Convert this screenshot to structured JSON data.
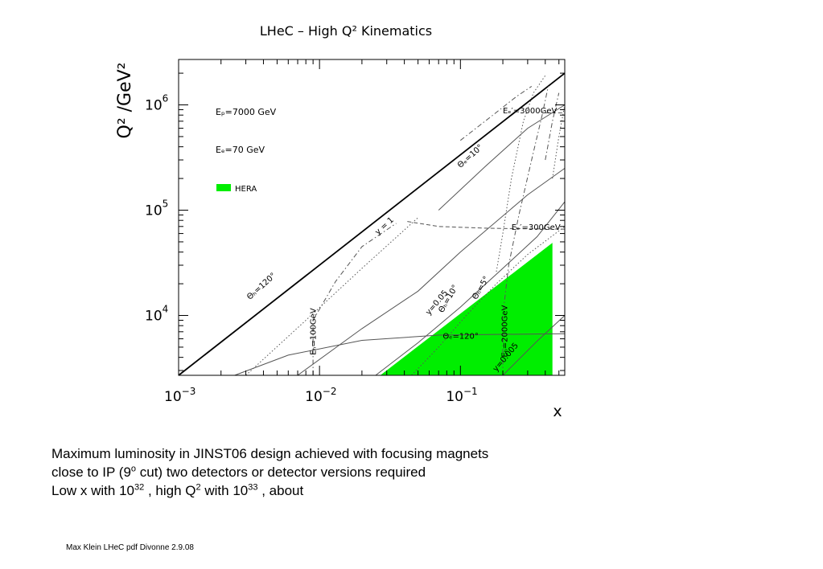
{
  "chart_data": {
    "type": "line",
    "title": "LHeC – High  Q² Kinematics",
    "xlabel": "x",
    "ylabel": "Q² /GeV²",
    "xscale": "log",
    "yscale": "log",
    "xlim": [
      0.001,
      0.55
    ],
    "ylim": [
      2700,
      2700000
    ],
    "grid": false,
    "x_ticks": [
      {
        "value": 0.001,
        "base": "10",
        "exp": "−3"
      },
      {
        "value": 0.01,
        "base": "10",
        "exp": "−2"
      },
      {
        "value": 0.1,
        "base": "10",
        "exp": "−1"
      }
    ],
    "y_ticks": [
      {
        "value": 10000,
        "base": "10",
        "exp": "4"
      },
      {
        "value": 100000,
        "base": "10",
        "exp": "5"
      },
      {
        "value": 1000000,
        "base": "10",
        "exp": "6"
      }
    ],
    "legend": {
      "placement": "top-left",
      "ep": "Eₚ=7000 GeV",
      "ee": "Eₑ=70 GeV",
      "hera": "HERA",
      "hera_color": "#00ee00"
    },
    "hera_region": [
      [
        0.027,
        2700
      ],
      [
        0.45,
        49000
      ],
      [
        0.45,
        2700
      ]
    ],
    "series": [
      {
        "style": "solid-thick",
        "points": [
          [
            0.001,
            2700
          ],
          [
            0.55,
            2000000
          ]
        ]
      },
      {
        "style": "solid-thin",
        "points": [
          [
            0.0025,
            2700
          ],
          [
            0.006,
            4200
          ],
          [
            0.02,
            5800
          ],
          [
            0.07,
            6500
          ],
          [
            0.3,
            6650
          ],
          [
            0.55,
            6700
          ]
        ]
      },
      {
        "style": "solid-thin",
        "points": [
          [
            0.007,
            2700
          ],
          [
            0.02,
            7500
          ],
          [
            0.05,
            17000
          ],
          [
            0.1,
            40000
          ],
          [
            0.3,
            140000
          ],
          [
            0.55,
            250000
          ]
        ]
      },
      {
        "style": "solid-thin",
        "points": [
          [
            0.07,
            100000
          ],
          [
            0.15,
            260000
          ],
          [
            0.3,
            600000
          ],
          [
            0.55,
            1000000
          ]
        ]
      },
      {
        "style": "solid-thin",
        "points": [
          [
            0.2,
            2700
          ],
          [
            0.35,
            5700
          ],
          [
            0.55,
            10000
          ]
        ]
      },
      {
        "style": "solid-thin",
        "points": [
          [
            0.025,
            2700
          ],
          [
            0.05,
            5500
          ],
          [
            0.1,
            12000
          ],
          [
            0.2,
            28000
          ],
          [
            0.35,
            56000
          ],
          [
            0.55,
            120000
          ]
        ]
      },
      {
        "style": "dashed",
        "points": [
          [
            0.042,
            78000
          ],
          [
            0.07,
            70000
          ],
          [
            0.15,
            67500
          ],
          [
            0.3,
            66500
          ],
          [
            0.55,
            66000
          ]
        ]
      },
      {
        "style": "dashed",
        "points": [
          [
            0.4,
            840000
          ],
          [
            0.55,
            840000
          ]
        ]
      },
      {
        "style": "dashdot",
        "points": [
          [
            0.009,
            2700
          ],
          [
            0.009,
            9000
          ],
          [
            0.013,
            21000
          ],
          [
            0.02,
            45000
          ],
          [
            0.035,
            75000
          ]
        ]
      },
      {
        "style": "dashdot",
        "points": [
          [
            0.2,
            2700
          ],
          [
            0.2,
            10000
          ],
          [
            0.22,
            30000
          ],
          [
            0.26,
            90000
          ],
          [
            0.32,
            300000
          ],
          [
            0.38,
            800000
          ],
          [
            0.42,
            1500000
          ]
        ]
      },
      {
        "style": "dashdot",
        "points": [
          [
            0.1,
            460000
          ],
          [
            0.17,
            800000
          ],
          [
            0.25,
            1200000
          ],
          [
            0.32,
            1500000
          ]
        ]
      },
      {
        "style": "dashdot",
        "points": [
          [
            0.4,
            300000
          ],
          [
            0.45,
            700000
          ],
          [
            0.5,
            1300000
          ]
        ]
      },
      {
        "style": "dotted",
        "points": [
          [
            0.003,
            2700
          ],
          [
            0.008,
            9000
          ],
          [
            0.02,
            28000
          ],
          [
            0.05,
            85000
          ]
        ]
      },
      {
        "style": "dotted",
        "points": [
          [
            0.045,
            2700
          ],
          [
            0.07,
            5000
          ],
          [
            0.11,
            10000
          ],
          [
            0.18,
            20000
          ],
          [
            0.3,
            38000
          ],
          [
            0.55,
            70000
          ]
        ]
      },
      {
        "style": "dotted",
        "points": [
          [
            0.18,
            26000
          ],
          [
            0.2,
            60000
          ],
          [
            0.23,
            200000
          ],
          [
            0.28,
            700000
          ],
          [
            0.33,
            1300000
          ],
          [
            0.4,
            1900000
          ]
        ]
      },
      {
        "style": "dotted",
        "points": [
          [
            0.45,
            200000
          ],
          [
            0.5,
            500000
          ],
          [
            0.55,
            1000000
          ]
        ]
      }
    ],
    "annotations": [
      {
        "text": "Eₑ′=3000GeV",
        "x": 0.2,
        "y": 830000,
        "rotate": 0
      },
      {
        "text": "Θₑ=10°",
        "x": 0.1,
        "y": 250000,
        "rotate": -42
      },
      {
        "text": "y = 1",
        "x": 0.026,
        "y": 58000,
        "rotate": -42
      },
      {
        "text": "Eₑ′=300GeV",
        "x": 0.23,
        "y": 65000,
        "rotate": 0
      },
      {
        "text": "Θₕ=120°",
        "x": 0.0032,
        "y": 14000,
        "rotate": -42
      },
      {
        "text": "Eₕ=100GeV",
        "x": 0.0094,
        "y": 4200,
        "rotate": -90
      },
      {
        "text": "y=0.05",
        "x": 0.06,
        "y": 10000,
        "rotate": -50
      },
      {
        "text": "Θₕ=10°",
        "x": 0.075,
        "y": 10500,
        "rotate": -60
      },
      {
        "text": "Θₕ=5°",
        "x": 0.13,
        "y": 14000,
        "rotate": -60
      },
      {
        "text": "Θₑ=120°",
        "x": 0.075,
        "y": 6000,
        "rotate": 0
      },
      {
        "text": "Eₕ=2000GeV",
        "x": 0.215,
        "y": 4000,
        "rotate": -90
      },
      {
        "text": "y=0.005",
        "x": 0.18,
        "y": 2900,
        "rotate": -50
      }
    ]
  },
  "caption": {
    "line1": "Maximum luminosity in JINST06 design achieved with focusing magnets",
    "line2a": "close to IP (9",
    "line2sup": "o",
    "line2b": " cut) two detectors or detector versions required",
    "line3a": "Low x with 10",
    "line3sup1": "32",
    "line3b": " , high Q",
    "line3sup2": "2",
    "line3c": " with 10",
    "line3sup3": "33",
    "line3d": " , about"
  },
  "footer": "Max Klein LHeC pdf Divonne 2.9.08"
}
